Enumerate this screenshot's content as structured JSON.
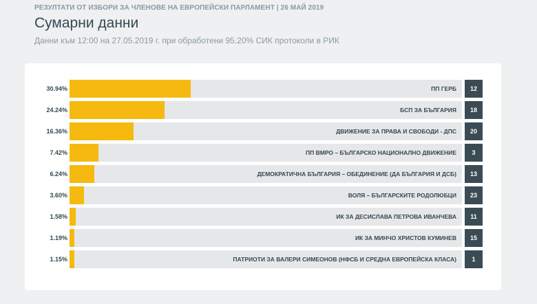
{
  "header": {
    "topline": "РЕЗУЛТАТИ ОТ ИЗБОРИ ЗА ЧЛЕНОВЕ НА ЕВРОПЕЙСКИ ПАРЛАМЕНТ | 26 МАЙ 2019",
    "title": "Сумарни данни",
    "subtitle": "Данни към 12:00 на 27.05.2019 г. при обработени 95.20% СИК протоколи в РИК"
  },
  "colors": {
    "bar": "#f5b910",
    "track": "#e5e7e9",
    "seats_bg": "#3b4b54"
  },
  "chart_data": {
    "type": "bar",
    "orientation": "horizontal",
    "max_value": 100,
    "rows": [
      {
        "percent_label": "30.94%",
        "value": 30.94,
        "party": "ПП ГЕРБ",
        "seats": "12"
      },
      {
        "percent_label": "24.24%",
        "value": 24.24,
        "party": "БСП ЗА БЪЛГАРИЯ",
        "seats": "18"
      },
      {
        "percent_label": "16.36%",
        "value": 16.36,
        "party": "ДВИЖЕНИЕ ЗА ПРАВА И СВОБОДИ - ДПС",
        "seats": "20"
      },
      {
        "percent_label": "7.42%",
        "value": 7.42,
        "party": "ПП ВМРО – БЪЛГАРСКО НАЦИОНАЛНО ДВИЖЕНИЕ",
        "seats": "3"
      },
      {
        "percent_label": "6.24%",
        "value": 6.24,
        "party": "ДЕМОКРАТИЧНА БЪЛГАРИЯ – ОБЕДИНЕНИЕ (ДА БЪЛГАРИЯ И ДСБ)",
        "seats": "13"
      },
      {
        "percent_label": "3.60%",
        "value": 3.6,
        "party": "ВОЛЯ – БЪЛГАРСКИТЕ РОДОЛЮБЦИ",
        "seats": "23"
      },
      {
        "percent_label": "1.58%",
        "value": 1.58,
        "party": "ИК ЗА ДЕСИСЛАВА ПЕТРОВА ИВАНЧЕВА",
        "seats": "11"
      },
      {
        "percent_label": "1.19%",
        "value": 1.19,
        "party": "ИК ЗА МИНЧО ХРИСТОВ КУМИНЕВ",
        "seats": "15"
      },
      {
        "percent_label": "1.15%",
        "value": 1.15,
        "party": "ПАТРИОТИ ЗА ВАЛЕРИ СИМЕОНОВ (НФСБ И СРЕДНА ЕВРОПЕЙСКА КЛАСА)",
        "seats": "1"
      }
    ]
  }
}
